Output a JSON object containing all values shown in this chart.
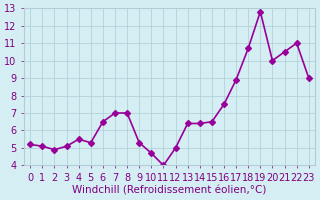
{
  "x": [
    0,
    1,
    2,
    3,
    4,
    5,
    6,
    7,
    8,
    9,
    10,
    11,
    12,
    13,
    14,
    15,
    16,
    17,
    18,
    19,
    20,
    21,
    22,
    23
  ],
  "y": [
    5.2,
    5.1,
    4.9,
    5.1,
    5.5,
    5.3,
    6.5,
    7.0,
    7.0,
    5.3,
    4.7,
    4.0,
    5.0,
    6.4,
    6.4,
    6.5,
    7.5,
    8.9,
    10.7,
    12.8,
    10.0,
    10.5,
    11.0,
    9.0
  ],
  "line_color": "#990099",
  "marker": "D",
  "marker_size": 3,
  "xlabel": "Windchill (Refroidissement éolien,°C)",
  "ylabel": "",
  "xlim_min": -0.5,
  "xlim_max": 23.5,
  "ylim_min": 4,
  "ylim_max": 13,
  "yticks": [
    4,
    5,
    6,
    7,
    8,
    9,
    10,
    11,
    12,
    13
  ],
  "xticks": [
    0,
    1,
    2,
    3,
    4,
    5,
    6,
    7,
    8,
    9,
    10,
    11,
    12,
    13,
    14,
    15,
    16,
    17,
    18,
    19,
    20,
    21,
    22,
    23
  ],
  "bg_color": "#d4eef4",
  "grid_color": "#b0ccd4",
  "text_color": "#800080",
  "xlabel_fontsize": 7.5,
  "tick_fontsize": 7,
  "line_width": 1.2
}
